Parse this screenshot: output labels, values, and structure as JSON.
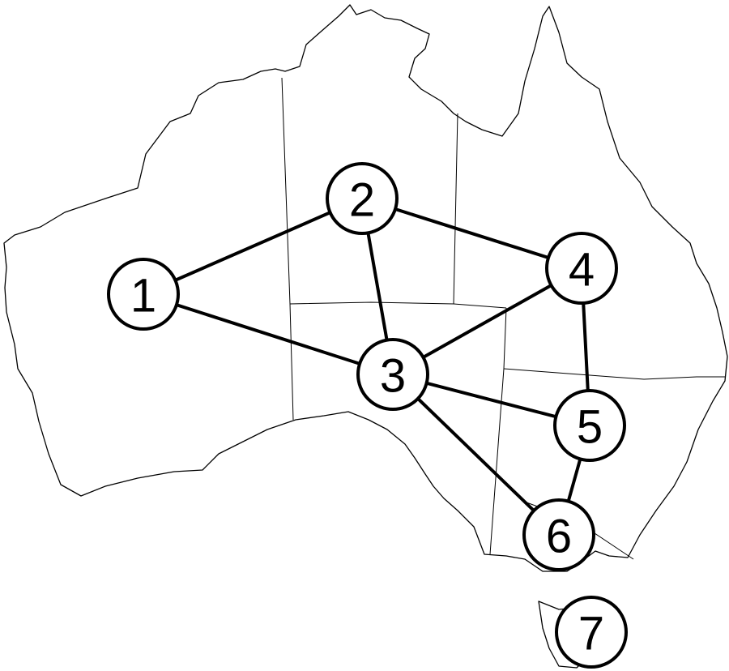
{
  "diagram": {
    "nodes": [
      {
        "id": "1",
        "label": "1",
        "region": "western-australia"
      },
      {
        "id": "2",
        "label": "2",
        "region": "northern-territory"
      },
      {
        "id": "3",
        "label": "3",
        "region": "south-australia"
      },
      {
        "id": "4",
        "label": "4",
        "region": "queensland"
      },
      {
        "id": "5",
        "label": "5",
        "region": "new-south-wales"
      },
      {
        "id": "6",
        "label": "6",
        "region": "victoria"
      },
      {
        "id": "7",
        "label": "7",
        "region": "tasmania"
      }
    ],
    "edges": [
      [
        "1",
        "2"
      ],
      [
        "1",
        "3"
      ],
      [
        "2",
        "3"
      ],
      [
        "2",
        "4"
      ],
      [
        "3",
        "4"
      ],
      [
        "3",
        "5"
      ],
      [
        "3",
        "6"
      ],
      [
        "4",
        "5"
      ],
      [
        "5",
        "6"
      ]
    ]
  },
  "colors": {
    "line": "#000000",
    "fill": "#ffffff"
  }
}
